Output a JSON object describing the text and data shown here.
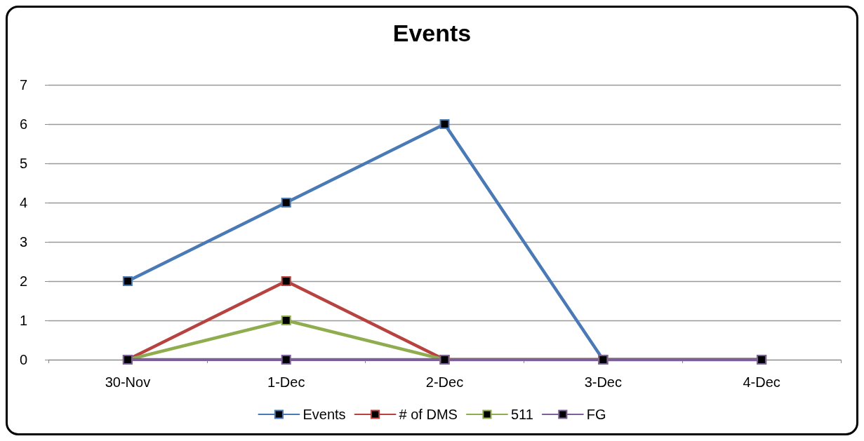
{
  "chart_data": {
    "type": "line",
    "title": "Events",
    "categories": [
      "30-Nov",
      "1-Dec",
      "2-Dec",
      "3-Dec",
      "4-Dec"
    ],
    "series": [
      {
        "name": "Events",
        "color": "#4a7ab5",
        "values": [
          2,
          4,
          6,
          0,
          0
        ]
      },
      {
        "name": "# of DMS",
        "color": "#b7423f",
        "values": [
          0,
          2,
          0,
          0,
          0
        ]
      },
      {
        "name": "511",
        "color": "#8fad4f",
        "values": [
          0,
          1,
          0,
          0,
          0
        ]
      },
      {
        "name": "FG",
        "color": "#7d5f9a",
        "values": [
          0,
          0,
          0,
          0,
          0
        ]
      }
    ],
    "ylim": [
      0,
      7
    ],
    "yticks": [
      0,
      1,
      2,
      3,
      4,
      5,
      6,
      7
    ],
    "grid": "y",
    "legend": "bottom",
    "marker": "square",
    "line_style": "solid"
  }
}
